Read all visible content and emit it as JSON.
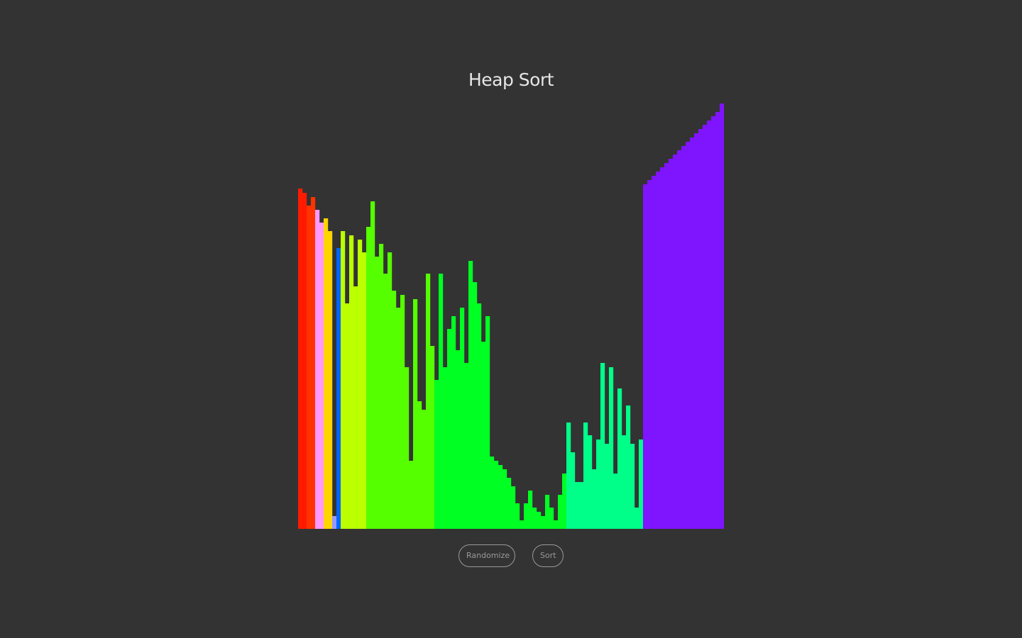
{
  "title": "Heap Sort",
  "buttons": {
    "randomize_label": "Randomize",
    "sort_label": "Sort"
  },
  "chart_data": {
    "type": "bar",
    "count": 100,
    "ylim": [
      0,
      100
    ],
    "values": [
      80,
      79,
      76,
      78,
      75,
      72,
      73,
      70,
      3,
      66,
      70,
      53,
      69,
      57,
      68,
      65,
      71,
      77,
      64,
      67,
      60,
      65,
      56,
      52,
      55,
      38,
      16,
      54,
      30,
      28,
      60,
      43,
      35,
      60,
      38,
      47,
      50,
      42,
      52,
      39,
      63,
      58,
      53,
      44,
      50,
      17,
      16,
      15,
      14,
      12,
      10,
      6,
      2,
      6,
      9,
      5,
      4,
      3,
      8,
      5,
      2,
      8,
      13,
      25,
      18,
      11,
      11,
      25,
      22,
      14,
      21,
      39,
      20,
      38,
      13,
      33,
      22,
      29,
      20,
      5,
      21,
      81,
      82,
      83,
      84,
      85,
      86,
      87,
      88,
      89,
      90,
      91,
      92,
      93,
      94,
      95,
      96,
      97,
      98,
      100
    ],
    "colors": [
      "#ff1a00",
      "#ff1a00",
      "#ff3300",
      "#ff3300",
      "#ff99ff",
      "#ff99ff",
      "#ffd500",
      "#ffd500",
      "#9999ff",
      "#0066ff",
      "#bbff00",
      "#bbff00",
      "#bbff00",
      "#bbff00",
      "#bbff00",
      "#bbff00",
      "#55ff00",
      "#55ff00",
      "#55ff00",
      "#55ff00",
      "#55ff00",
      "#55ff00",
      "#55ff00",
      "#55ff00",
      "#55ff00",
      "#55ff00",
      "#55ff00",
      "#55ff00",
      "#55ff00",
      "#55ff00",
      "#55ff00",
      "#55ff00",
      "#00ff22",
      "#00ff22",
      "#00ff22",
      "#00ff22",
      "#00ff22",
      "#00ff22",
      "#00ff22",
      "#00ff22",
      "#00ff22",
      "#00ff22",
      "#00ff22",
      "#00ff22",
      "#00ff22",
      "#00ff22",
      "#00ff22",
      "#00ff22",
      "#00ff22",
      "#00ff22",
      "#00ff22",
      "#00ff22",
      "#00ff22",
      "#00ff22",
      "#00ff22",
      "#00ff22",
      "#00ff22",
      "#00ff22",
      "#00ff22",
      "#00ff22",
      "#00ff22",
      "#00ff22",
      "#00ff22",
      "#00ff88",
      "#00ff88",
      "#00ff88",
      "#00ff88",
      "#00ff88",
      "#00ff88",
      "#00ff88",
      "#00ff88",
      "#00ff88",
      "#00ff88",
      "#00ff88",
      "#00ff88",
      "#00ff88",
      "#00ff88",
      "#00ff88",
      "#00ff88",
      "#00ff88",
      "#00ff88",
      "#7f14ff",
      "#7f14ff",
      "#7f14ff",
      "#7f14ff",
      "#7f14ff",
      "#7f14ff",
      "#7f14ff",
      "#7f14ff",
      "#7f14ff",
      "#7f14ff",
      "#7f14ff",
      "#7f14ff",
      "#7f14ff",
      "#7f14ff",
      "#7f14ff",
      "#7f14ff",
      "#7f14ff",
      "#7f14ff",
      "#7f14ff"
    ],
    "grid": false,
    "legend": "none"
  }
}
